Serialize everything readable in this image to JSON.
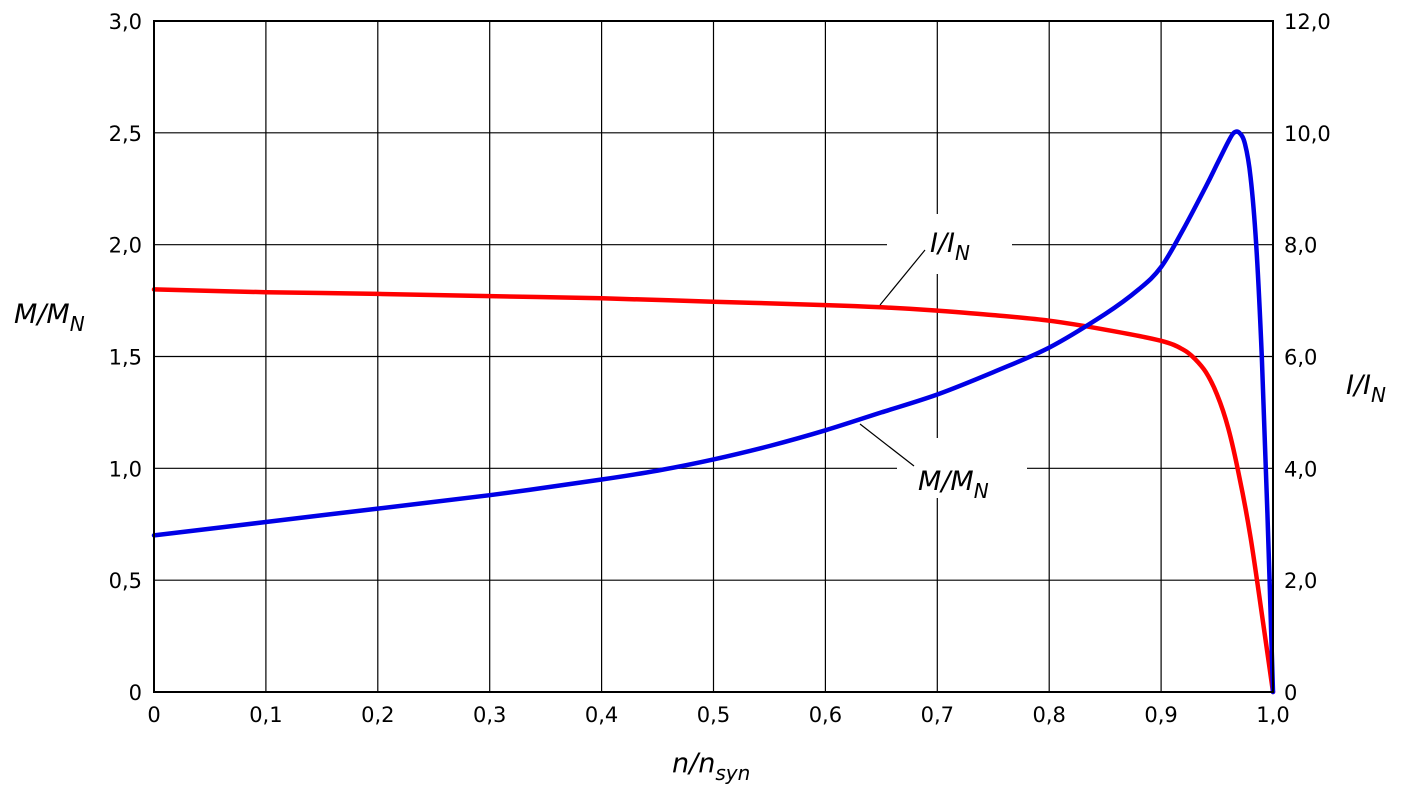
{
  "chart_data": {
    "type": "line",
    "title": "",
    "xlabel": {
      "main": "n/n",
      "sub": "syn"
    },
    "ylabel_left": {
      "main": "M/M",
      "sub": "N"
    },
    "ylabel_right": {
      "main": "I/I",
      "sub": "N"
    },
    "xlim": [
      0,
      1.0
    ],
    "ylim_left": [
      0,
      3.0
    ],
    "ylim_right": [
      0,
      12.0
    ],
    "x_ticks": [
      0,
      0.1,
      0.2,
      0.3,
      0.4,
      0.5,
      0.6,
      0.7,
      0.8,
      0.9,
      1.0
    ],
    "x_tick_labels": [
      "0",
      "0,1",
      "0,2",
      "0,3",
      "0,4",
      "0,5",
      "0,6",
      "0,7",
      "0,8",
      "0,9",
      "1,0"
    ],
    "y_left_ticks": [
      0,
      0.5,
      1.0,
      1.5,
      2.0,
      2.5,
      3.0
    ],
    "y_left_tick_labels": [
      "0",
      "0,5",
      "1,0",
      "1,5",
      "2,0",
      "2,5",
      "3,0"
    ],
    "y_right_ticks": [
      0,
      2.0,
      4.0,
      6.0,
      8.0,
      10.0,
      12.0
    ],
    "y_right_tick_labels": [
      "0",
      "2,0",
      "4,0",
      "6,0",
      "8,0",
      "10,0",
      "12,0"
    ],
    "grid": true,
    "series": [
      {
        "name": "I/I_N",
        "axis": "right",
        "color": "#ff0000",
        "x": [
          0,
          0.1,
          0.2,
          0.3,
          0.4,
          0.5,
          0.6,
          0.65,
          0.7,
          0.75,
          0.8,
          0.85,
          0.9,
          0.92,
          0.93,
          0.94,
          0.95,
          0.96,
          0.97,
          0.98,
          0.99,
          1.0
        ],
        "y": [
          7.2,
          7.15,
          7.12,
          7.08,
          7.04,
          6.98,
          6.92,
          6.88,
          6.82,
          6.74,
          6.64,
          6.48,
          6.28,
          6.12,
          5.96,
          5.72,
          5.32,
          4.72,
          3.84,
          2.76,
          1.4,
          0
        ]
      },
      {
        "name": "M/M_N",
        "axis": "left",
        "color": "#0000e6",
        "x": [
          0,
          0.1,
          0.2,
          0.3,
          0.4,
          0.45,
          0.5,
          0.55,
          0.6,
          0.65,
          0.7,
          0.75,
          0.8,
          0.85,
          0.88,
          0.9,
          0.92,
          0.94,
          0.95,
          0.96,
          0.965,
          0.97,
          0.975,
          0.98,
          0.985,
          0.99,
          0.995,
          1.0
        ],
        "y": [
          0.7,
          0.76,
          0.82,
          0.88,
          0.95,
          0.99,
          1.04,
          1.1,
          1.17,
          1.25,
          1.33,
          1.43,
          1.54,
          1.69,
          1.8,
          1.9,
          2.07,
          2.26,
          2.36,
          2.46,
          2.5,
          2.5,
          2.45,
          2.3,
          2.0,
          1.5,
          0.8,
          0
        ]
      }
    ],
    "annotations": [
      {
        "series": "I/I_N",
        "text_main": "I/I",
        "text_sub": "N",
        "anchor_x": 0.65,
        "anchor_y": 6.88
      },
      {
        "series": "M/M_N",
        "text_main": "M/M",
        "text_sub": "N",
        "anchor_x": 0.63,
        "anchor_y": 1.22
      }
    ]
  }
}
